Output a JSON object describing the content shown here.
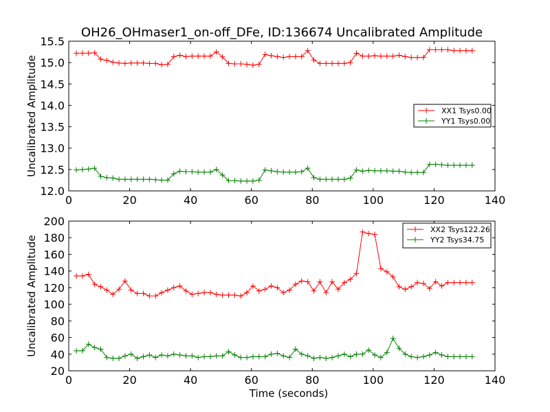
{
  "title": "OH26_OHmaser1_on-off_DFe, ID:136674 Uncalibrated Amplitude",
  "colors": {
    "red": "#ff0000",
    "green": "#008000"
  },
  "chart_data": [
    {
      "type": "line",
      "xlabel": "",
      "ylabel": "Uncalibrated Amplitude",
      "xlim": [
        0,
        140
      ],
      "ylim": [
        12.0,
        15.5
      ],
      "xticks": [
        "0",
        "20",
        "40",
        "60",
        "80",
        "100",
        "120",
        "140"
      ],
      "yticks": [
        "12.0",
        "12.5",
        "13.0",
        "13.5",
        "14.0",
        "14.5",
        "15.0",
        "15.5"
      ],
      "legend_position": "center-right",
      "x": [
        2.5,
        4.5,
        6.5,
        8.5,
        10.5,
        12.5,
        14.5,
        16.5,
        18.5,
        20.5,
        22.5,
        24.5,
        26.5,
        28.5,
        30.5,
        32.5,
        34.5,
        36.5,
        38.5,
        40.5,
        42.5,
        44.5,
        46.5,
        48.5,
        50.5,
        52.5,
        54.5,
        56.5,
        58.5,
        60.5,
        62.5,
        64.5,
        66.5,
        68.5,
        70.5,
        72.5,
        74.5,
        76.5,
        78.5,
        80.5,
        82.5,
        84.5,
        86.5,
        88.5,
        90.5,
        92.5,
        94.5,
        96.5,
        98.5,
        100.5,
        102.5,
        104.5,
        106.5,
        108.5,
        110.5,
        112.5,
        114.5,
        116.5,
        118.5,
        120.5,
        122.5,
        124.5,
        126.5,
        128.5,
        130.5,
        132.5
      ],
      "series": [
        {
          "name": "XX1 Tsys0.00",
          "color": "#ff0000",
          "values": [
            15.22,
            15.22,
            15.22,
            15.23,
            15.08,
            15.05,
            15.01,
            14.99,
            14.98,
            14.99,
            14.99,
            14.99,
            14.98,
            14.98,
            14.95,
            14.96,
            15.14,
            15.17,
            15.14,
            15.15,
            15.15,
            15.15,
            15.15,
            15.25,
            15.13,
            14.98,
            14.97,
            14.97,
            14.96,
            14.94,
            14.96,
            15.19,
            15.16,
            15.14,
            15.12,
            15.14,
            15.14,
            15.14,
            15.28,
            15.06,
            14.98,
            14.98,
            14.98,
            14.98,
            14.98,
            15.0,
            15.22,
            15.15,
            15.15,
            15.16,
            15.15,
            15.15,
            15.15,
            15.17,
            15.14,
            15.12,
            15.12,
            15.12,
            15.3,
            15.3,
            15.3,
            15.3,
            15.28,
            15.28,
            15.28,
            15.28
          ]
        },
        {
          "name": "YY1 Tsys0.00",
          "color": "#008000",
          "values": [
            12.49,
            12.5,
            12.51,
            12.53,
            12.34,
            12.31,
            12.3,
            12.27,
            12.27,
            12.27,
            12.27,
            12.27,
            12.27,
            12.26,
            12.25,
            12.25,
            12.4,
            12.46,
            12.45,
            12.45,
            12.44,
            12.44,
            12.44,
            12.5,
            12.37,
            12.24,
            12.24,
            12.23,
            12.23,
            12.23,
            12.25,
            12.49,
            12.47,
            12.45,
            12.44,
            12.44,
            12.44,
            12.45,
            12.53,
            12.31,
            12.27,
            12.27,
            12.27,
            12.27,
            12.27,
            12.3,
            12.49,
            12.46,
            12.48,
            12.47,
            12.47,
            12.47,
            12.46,
            12.46,
            12.44,
            12.43,
            12.43,
            12.43,
            12.62,
            12.62,
            12.61,
            12.6,
            12.6,
            12.6,
            12.6,
            12.6
          ]
        }
      ]
    },
    {
      "type": "line",
      "xlabel": "Time (seconds)",
      "ylabel": "Uncalibrated Amplitude",
      "xlim": [
        0,
        140
      ],
      "ylim": [
        20,
        200
      ],
      "xticks": [
        "0",
        "20",
        "40",
        "60",
        "80",
        "100",
        "120",
        "140"
      ],
      "yticks": [
        "20",
        "40",
        "60",
        "80",
        "100",
        "120",
        "140",
        "160",
        "180",
        "200"
      ],
      "legend_position": "upper-right",
      "x": [
        2.5,
        4.5,
        6.5,
        8.5,
        10.5,
        12.5,
        14.5,
        16.5,
        18.5,
        20.5,
        22.5,
        24.5,
        26.5,
        28.5,
        30.5,
        32.5,
        34.5,
        36.5,
        38.5,
        40.5,
        42.5,
        44.5,
        46.5,
        48.5,
        50.5,
        52.5,
        54.5,
        56.5,
        58.5,
        60.5,
        62.5,
        64.5,
        66.5,
        68.5,
        70.5,
        72.5,
        74.5,
        76.5,
        78.5,
        80.5,
        82.5,
        84.5,
        86.5,
        88.5,
        90.5,
        92.5,
        94.5,
        96.5,
        98.5,
        100.5,
        102.5,
        104.5,
        106.5,
        108.5,
        110.5,
        112.5,
        114.5,
        116.5,
        118.5,
        120.5,
        122.5,
        124.5,
        126.5,
        128.5,
        130.5,
        132.5
      ],
      "series": [
        {
          "name": "XX2 Tsys122.26",
          "color": "#ff0000",
          "values": [
            134,
            134,
            136,
            124,
            121,
            117,
            112,
            118,
            128,
            117,
            113,
            113,
            110,
            110,
            114,
            117,
            120,
            122,
            116,
            112,
            113,
            114,
            114,
            112,
            111,
            111,
            111,
            110,
            114,
            122,
            116,
            118,
            122,
            120,
            114,
            117,
            124,
            128,
            127,
            116,
            127,
            114,
            127,
            118,
            126,
            130,
            137,
            187,
            185,
            184,
            143,
            139,
            133,
            121,
            118,
            121,
            126,
            125,
            119,
            127,
            122,
            126,
            126,
            126,
            126,
            126
          ]
        },
        {
          "name": "YY2 Tsys34.75",
          "color": "#008000",
          "values": [
            44,
            44,
            52,
            48,
            46,
            36,
            35,
            35,
            38,
            40,
            35,
            37,
            39,
            36,
            39,
            38,
            40,
            39,
            38,
            38,
            36,
            37,
            37,
            38,
            38,
            43,
            39,
            36,
            36,
            37,
            37,
            37,
            40,
            41,
            38,
            36,
            46,
            40,
            38,
            35,
            36,
            35,
            36,
            38,
            40,
            37,
            40,
            40,
            45,
            39,
            36,
            42,
            59,
            47,
            40,
            37,
            36,
            37,
            39,
            42,
            39,
            37,
            37,
            37,
            37,
            37
          ]
        }
      ]
    }
  ]
}
